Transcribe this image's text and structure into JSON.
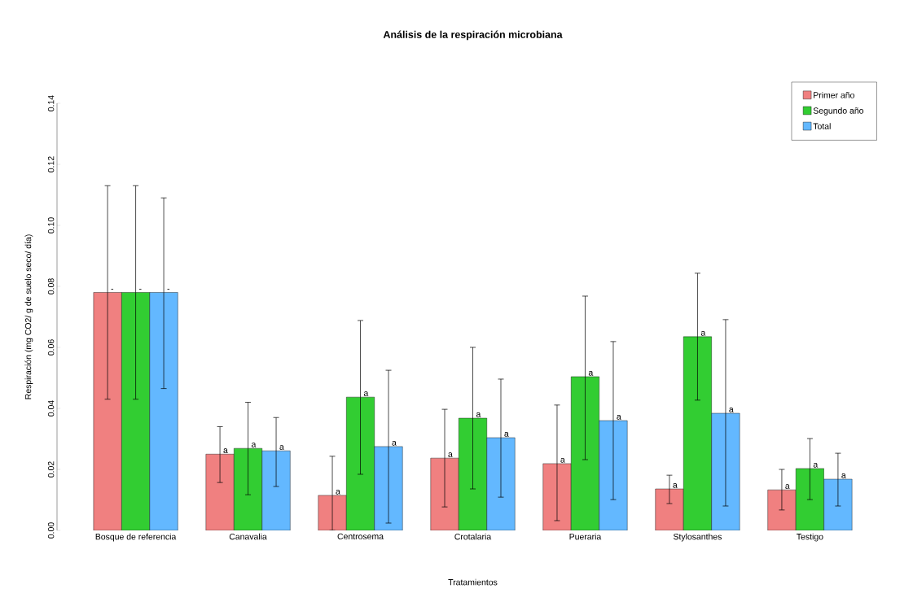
{
  "chart_data": {
    "type": "bar",
    "title": "Análisis de la respiración microbiana",
    "xlabel": "Tratamientos",
    "ylabel": "Respiración (mg CO2/ g de suelo seco/ día)",
    "categories": [
      "Bosque de referencia",
      "Canavalia",
      "Centrosema",
      "Crotalaria",
      "Pueraria",
      "Stylosanthes",
      "Testigo"
    ],
    "series": [
      {
        "name": "Primer año",
        "color": "#f08080",
        "values": [
          0.078,
          0.025,
          0.0115,
          0.0237,
          0.0219,
          0.0136,
          0.0133
        ],
        "errors": [
          [
            0.043,
            0.113
          ],
          [
            0.0157,
            0.034
          ],
          [
            0.0,
            0.0243
          ],
          [
            0.0077,
            0.0397
          ],
          [
            0.0032,
            0.0411
          ],
          [
            0.0088,
            0.0181
          ],
          [
            0.0067,
            0.02
          ]
        ],
        "value_labels": [
          "-",
          "a",
          "a",
          "a",
          "a",
          "a",
          "a"
        ]
      },
      {
        "name": "Segundo año",
        "color": "#32cd32",
        "values": [
          0.078,
          0.0269,
          0.0437,
          0.0368,
          0.0504,
          0.0635,
          0.0203
        ],
        "errors": [
          [
            0.043,
            0.113
          ],
          [
            0.0117,
            0.042
          ],
          [
            0.0184,
            0.0688
          ],
          [
            0.0136,
            0.06
          ],
          [
            0.0232,
            0.0768
          ],
          [
            0.0427,
            0.0843
          ],
          [
            0.0101,
            0.0301
          ]
        ],
        "value_labels": [
          "-",
          "a",
          "a",
          "a",
          "a",
          "a",
          "a"
        ]
      },
      {
        "name": "Total",
        "color": "#63b8ff",
        "values": [
          0.078,
          0.0261,
          0.0275,
          0.0304,
          0.036,
          0.0384,
          0.0168
        ],
        "errors": [
          [
            0.0465,
            0.109
          ],
          [
            0.0144,
            0.037
          ],
          [
            0.0024,
            0.0525
          ],
          [
            0.0109,
            0.0496
          ],
          [
            0.0101,
            0.0619
          ],
          [
            0.008,
            0.0691
          ],
          [
            0.008,
            0.0253
          ]
        ],
        "value_labels": [
          "-",
          "a",
          "a",
          "a",
          "a",
          "a",
          "a"
        ]
      }
    ],
    "ylim": [
      0,
      0.14
    ],
    "yticks": [
      {
        "value": 0,
        "label": "0.00"
      },
      {
        "value": 0.02,
        "label": "0.02"
      },
      {
        "value": 0.04,
        "label": "0.04"
      },
      {
        "value": 0.06,
        "label": "0.06"
      },
      {
        "value": 0.08,
        "label": "0.08"
      },
      {
        "value": 0.1,
        "label": "0.10"
      },
      {
        "value": 0.12,
        "label": "0.12"
      },
      {
        "value": 0.14,
        "label": "0.14"
      }
    ],
    "legend": "top right",
    "grid": false
  }
}
